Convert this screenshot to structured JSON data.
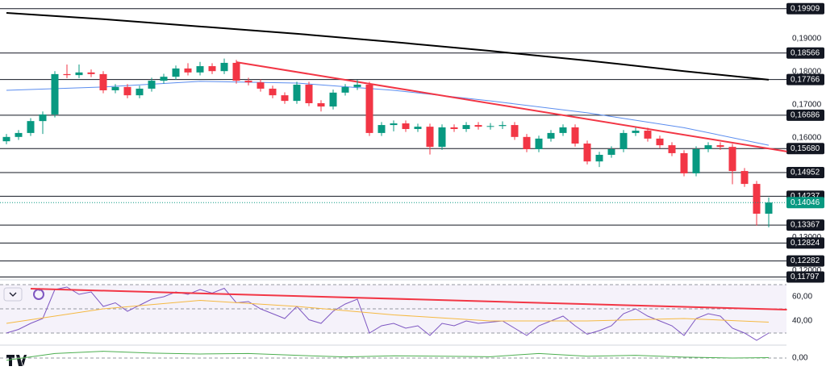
{
  "chart_data": [
    {
      "type": "candlestick",
      "up_color": "#089981",
      "down_color": "#f23645",
      "ylim": [
        0.1176,
        0.2017
      ],
      "yticks": [
        {
          "value": 0.19,
          "label": "0,19000"
        },
        {
          "value": 0.18,
          "label": "0,18000"
        },
        {
          "value": 0.17,
          "label": "0,17000"
        },
        {
          "value": 0.16,
          "label": "0,16000"
        },
        {
          "value": 0.13,
          "label": "0,13000"
        },
        {
          "value": 0.12,
          "label": "0,12000"
        }
      ],
      "levels": [
        {
          "value": 0.19909,
          "label": "0,19909"
        },
        {
          "value": 0.18566,
          "label": "0,18566"
        },
        {
          "value": 0.17766,
          "label": "0,17766"
        },
        {
          "value": 0.16686,
          "label": "0,16686"
        },
        {
          "value": 0.1568,
          "label": "0,15680"
        },
        {
          "value": 0.14952,
          "label": "0,14952"
        },
        {
          "value": 0.14237,
          "label": "0,14237"
        },
        {
          "value": 0.13367,
          "label": "0,13367"
        },
        {
          "value": 0.12824,
          "label": "0,12824"
        },
        {
          "value": 0.12282,
          "label": "0,12282"
        },
        {
          "value": 0.11797,
          "label": "0,11797"
        }
      ],
      "last_price": {
        "value": 0.14046,
        "label": "0,14046"
      },
      "open": [
        0.159,
        0.1603,
        0.1615,
        0.1651,
        0.1671,
        0.1793,
        0.179,
        0.1798,
        0.1793,
        0.1744,
        0.1754,
        0.1729,
        0.1749,
        0.1773,
        0.1785,
        0.181,
        0.1798,
        0.1817,
        0.1802,
        0.1827,
        0.1773,
        0.1768,
        0.1749,
        0.1729,
        0.1712,
        0.1761,
        0.1705,
        0.1695,
        0.1737,
        0.1754,
        0.1761,
        0.1615,
        0.1639,
        0.1644,
        0.1627,
        0.1634,
        0.1573,
        0.1632,
        0.1627,
        0.1639,
        0.1634,
        0.1636,
        0.1639,
        0.1603,
        0.1566,
        0.1598,
        0.1615,
        0.1632,
        0.1583,
        0.1529,
        0.1549,
        0.1566,
        0.1615,
        0.1622,
        0.1598,
        0.1578,
        0.1554,
        0.1493,
        0.1566,
        0.1578,
        0.1573,
        0.15,
        0.1461,
        0.1371
      ],
      "high": [
        0.1612,
        0.1624,
        0.166,
        0.168,
        0.1802,
        0.1822,
        0.1822,
        0.1807,
        0.1802,
        0.1763,
        0.1763,
        0.1758,
        0.1782,
        0.1794,
        0.1819,
        0.1826,
        0.183,
        0.1826,
        0.184,
        0.1836,
        0.1782,
        0.1777,
        0.1758,
        0.1738,
        0.177,
        0.177,
        0.1714,
        0.1746,
        0.1763,
        0.1775,
        0.177,
        0.1648,
        0.1653,
        0.1653,
        0.1643,
        0.1643,
        0.1641,
        0.1641,
        0.1648,
        0.1648,
        0.1645,
        0.165,
        0.1648,
        0.1612,
        0.1607,
        0.1624,
        0.1641,
        0.1641,
        0.1592,
        0.1558,
        0.1575,
        0.1624,
        0.1631,
        0.1631,
        0.1607,
        0.1587,
        0.1563,
        0.1575,
        0.1587,
        0.1587,
        0.1582,
        0.1509,
        0.147,
        0.142
      ],
      "low": [
        0.1581,
        0.1594,
        0.1606,
        0.1612,
        0.1662,
        0.1781,
        0.1781,
        0.1784,
        0.1735,
        0.1735,
        0.172,
        0.172,
        0.174,
        0.1764,
        0.1776,
        0.1789,
        0.1789,
        0.1793,
        0.1793,
        0.1764,
        0.1759,
        0.174,
        0.172,
        0.1703,
        0.1703,
        0.1696,
        0.168,
        0.1686,
        0.1728,
        0.1745,
        0.1606,
        0.1606,
        0.162,
        0.1618,
        0.1618,
        0.155,
        0.1564,
        0.1618,
        0.1618,
        0.1625,
        0.1625,
        0.1627,
        0.1594,
        0.1557,
        0.1557,
        0.1589,
        0.1606,
        0.1574,
        0.152,
        0.1512,
        0.154,
        0.1557,
        0.1606,
        0.1589,
        0.1569,
        0.1545,
        0.1484,
        0.1484,
        0.1557,
        0.1564,
        0.146,
        0.1452,
        0.1335,
        0.133
      ],
      "close": [
        0.1603,
        0.1615,
        0.1651,
        0.1671,
        0.1793,
        0.179,
        0.1798,
        0.1793,
        0.1744,
        0.1754,
        0.1729,
        0.1749,
        0.1773,
        0.1785,
        0.181,
        0.1798,
        0.1817,
        0.1802,
        0.1827,
        0.1773,
        0.1768,
        0.1749,
        0.1729,
        0.1712,
        0.1761,
        0.1705,
        0.1695,
        0.1737,
        0.1754,
        0.1761,
        0.1615,
        0.1639,
        0.1644,
        0.1627,
        0.1634,
        0.1573,
        0.1632,
        0.1627,
        0.1639,
        0.1634,
        0.1636,
        0.1639,
        0.1603,
        0.1566,
        0.1598,
        0.1615,
        0.1632,
        0.1583,
        0.1529,
        0.1549,
        0.1566,
        0.1615,
        0.1622,
        0.1598,
        0.1578,
        0.1554,
        0.1493,
        0.1566,
        0.1578,
        0.1573,
        0.15,
        0.1461,
        0.1371,
        0.14046
      ],
      "lines": [
        {
          "color": "#000000",
          "width": 2,
          "x": [
            0,
            8,
            16,
            24,
            32,
            40,
            48,
            56,
            63
          ],
          "values": [
            0.1978,
            0.1959,
            0.1937,
            0.1915,
            0.189,
            0.1863,
            0.1834,
            0.1802,
            0.1776
          ]
        },
        {
          "color": "#5b8def",
          "width": 1,
          "x": [
            0,
            8,
            16,
            24,
            32,
            40,
            48,
            56,
            63
          ],
          "values": [
            0.1744,
            0.1754,
            0.1771,
            0.1766,
            0.1744,
            0.1712,
            0.1676,
            0.1631,
            0.1578
          ]
        },
        {
          "color": "#f23645",
          "width": 2,
          "x": [
            19,
            64.5
          ],
          "values": [
            0.1829,
            0.1559
          ]
        }
      ]
    },
    {
      "type": "line",
      "ylim": [
        20,
        72
      ],
      "yticks": [
        {
          "value": 60,
          "label": "60,00"
        },
        {
          "value": 40,
          "label": "40,00"
        }
      ],
      "band": [
        30,
        70
      ],
      "hlines": [
        70,
        50,
        30
      ],
      "series": [
        {
          "color": "#7e57c2",
          "values": [
            30,
            33,
            38,
            42,
            66,
            68,
            62,
            64,
            52,
            55,
            48,
            53,
            58,
            60,
            64,
            62,
            66,
            63,
            67,
            55,
            56,
            50,
            46,
            42,
            52,
            41,
            38,
            48,
            54,
            58,
            30,
            36,
            38,
            34,
            36,
            28,
            38,
            36,
            40,
            38,
            39,
            40,
            34,
            28,
            36,
            40,
            44,
            36,
            29,
            32,
            36,
            46,
            50,
            44,
            40,
            36,
            28,
            42,
            46,
            44,
            34,
            30,
            24,
            30
          ]
        },
        {
          "color": "#f5b942",
          "x": [
            0,
            8,
            16,
            24,
            32,
            40,
            48,
            56,
            63
          ],
          "values": [
            38,
            50,
            57,
            52,
            45,
            40,
            40,
            42,
            39
          ]
        },
        {
          "color": "#f23645",
          "width": 2,
          "x": [
            2,
            64.5
          ],
          "values": [
            66.7,
            49.3
          ]
        }
      ]
    },
    {
      "type": "line",
      "ylim": [
        -0.05,
        0.05
      ],
      "yticks": [
        {
          "value": 0,
          "label": "0,00"
        }
      ],
      "hlines": [
        0
      ],
      "series": [
        {
          "color": "#4caf50",
          "x": [
            0,
            4,
            8,
            12,
            16,
            20,
            24,
            28,
            32,
            36,
            40,
            44,
            48,
            52,
            56,
            60,
            63
          ],
          "values": [
            -0.01,
            0.02,
            0.03,
            0.022,
            0.018,
            0.02,
            0.012,
            0.005,
            0.01,
            0.008,
            0.006,
            0.02,
            0.008,
            0.012,
            0.004,
            0.0,
            0.002
          ]
        }
      ]
    }
  ]
}
